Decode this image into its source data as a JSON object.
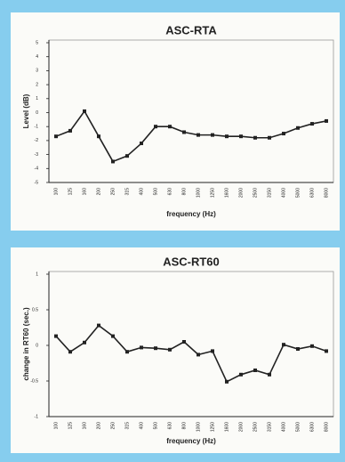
{
  "chart_data": [
    {
      "type": "line",
      "title": "ASC-RTA",
      "y_label": "Level (dB)",
      "x_label": "frequency (Hz)",
      "categories": [
        "100",
        "125",
        "160",
        "200",
        "250",
        "315",
        "400",
        "500",
        "630",
        "800",
        "1000",
        "1250",
        "1600",
        "2000",
        "2500",
        "3150",
        "4000",
        "5000",
        "6300",
        "8000"
      ],
      "series": [
        {
          "name": "ASC-RTA",
          "color": "#222222",
          "values": [
            -1.7,
            -1.3,
            0.1,
            -1.7,
            -3.5,
            -3.1,
            -2.2,
            -1,
            -1,
            -1.4,
            -1.6,
            -1.6,
            -1.7,
            -1.7,
            -1.8,
            -1.8,
            -1.5,
            -1.1,
            -0.8,
            -0.6
          ]
        }
      ],
      "ylim": [
        -5,
        5
      ],
      "yticks": [
        5,
        4,
        3,
        2,
        1,
        0,
        -1,
        -2,
        -3,
        -4,
        -5
      ]
    },
    {
      "type": "line",
      "title": "ASC-RT60",
      "y_label": "change in RT60 (sec.)",
      "x_label": "frequency (Hz)",
      "categories": [
        "100",
        "125",
        "160",
        "200",
        "250",
        "315",
        "400",
        "500",
        "630",
        "800",
        "1000",
        "1250",
        "1600",
        "2000",
        "2500",
        "3150",
        "4000",
        "5000",
        "6300",
        "8000"
      ],
      "series": [
        {
          "name": "ASC-RT60",
          "color": "#222222",
          "values": [
            0.13,
            -0.09,
            0.04,
            0.28,
            0.13,
            -0.09,
            -0.03,
            -0.04,
            -0.06,
            0.05,
            -0.13,
            -0.08,
            -0.51,
            -0.41,
            -0.35,
            -0.41,
            0.01,
            -0.05,
            -0.01,
            -0.08
          ]
        }
      ],
      "ylim": [
        -1,
        1
      ],
      "yticks": [
        1,
        0.5,
        0,
        -0.5,
        -1
      ]
    }
  ]
}
